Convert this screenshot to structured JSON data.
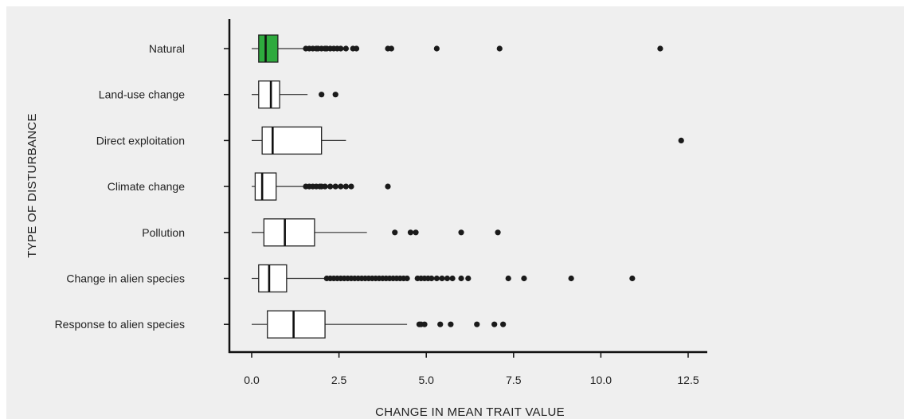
{
  "chart_data": {
    "type": "boxplot",
    "orientation": "horizontal",
    "xlabel": "CHANGE IN MEAN TRAIT VALUE",
    "ylabel": "TYPE OF DISTURBANCE",
    "xlim": [
      -0.7,
      13.3
    ],
    "xticks": [
      0.0,
      2.5,
      5.0,
      7.5,
      10.0,
      12.5
    ],
    "xtick_labels": [
      "0.0",
      "2.5",
      "5.0",
      "7.5",
      "10.0",
      "12.5"
    ],
    "grid": false,
    "highlight_color": "#2eaa3e",
    "box_color": "#ffffff",
    "outline_color": "#222222",
    "categories": [
      {
        "label": "Natural",
        "whisker_low": 0.0,
        "q1": 0.2,
        "median": 0.4,
        "q3": 0.75,
        "whisker_high": 1.5,
        "highlight": true,
        "outliers": [
          1.55,
          1.65,
          1.75,
          1.85,
          1.9,
          2.0,
          2.1,
          2.15,
          2.25,
          2.35,
          2.45,
          2.55,
          2.7,
          2.9,
          3.0,
          3.9,
          4.0,
          5.3,
          7.1,
          11.7
        ]
      },
      {
        "label": "Land-use change",
        "whisker_low": 0.0,
        "q1": 0.2,
        "median": 0.55,
        "q3": 0.8,
        "whisker_high": 1.6,
        "highlight": false,
        "outliers": [
          2.0,
          2.4
        ]
      },
      {
        "label": "Direct exploitation",
        "whisker_low": 0.0,
        "q1": 0.3,
        "median": 0.6,
        "q3": 2.0,
        "whisker_high": 2.7,
        "highlight": false,
        "outliers": [
          12.3
        ]
      },
      {
        "label": "Climate change",
        "whisker_low": 0.0,
        "q1": 0.1,
        "median": 0.3,
        "q3": 0.7,
        "whisker_high": 1.5,
        "highlight": false,
        "outliers": [
          1.55,
          1.65,
          1.75,
          1.85,
          1.95,
          2.0,
          2.1,
          2.25,
          2.4,
          2.55,
          2.7,
          2.85,
          3.9
        ]
      },
      {
        "label": "Pollution",
        "whisker_low": 0.0,
        "q1": 0.35,
        "median": 0.95,
        "q3": 1.8,
        "whisker_high": 3.3,
        "highlight": false,
        "outliers": [
          4.1,
          4.55,
          4.7,
          6.0,
          7.05
        ]
      },
      {
        "label": "Change in alien species",
        "whisker_low": 0.0,
        "q1": 0.2,
        "median": 0.5,
        "q3": 1.0,
        "whisker_high": 2.1,
        "highlight": false,
        "outliers": [
          2.15,
          2.25,
          2.35,
          2.45,
          2.55,
          2.65,
          2.75,
          2.85,
          2.95,
          3.05,
          3.15,
          3.25,
          3.35,
          3.45,
          3.55,
          3.65,
          3.75,
          3.85,
          3.95,
          4.05,
          4.15,
          4.25,
          4.35,
          4.45,
          4.75,
          4.85,
          4.95,
          5.05,
          5.15,
          5.3,
          5.45,
          5.6,
          5.75,
          6.0,
          6.2,
          7.35,
          7.8,
          9.15,
          10.9
        ]
      },
      {
        "label": "Response to alien species",
        "whisker_low": 0.0,
        "q1": 0.45,
        "median": 1.2,
        "q3": 2.1,
        "whisker_high": 4.45,
        "highlight": false,
        "outliers": [
          4.8,
          4.85,
          4.95,
          5.4,
          5.7,
          6.45,
          6.95,
          7.2
        ]
      }
    ]
  }
}
